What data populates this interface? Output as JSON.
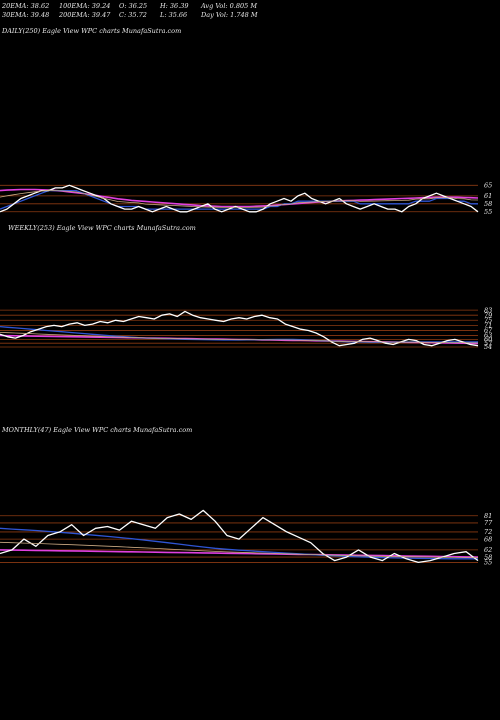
{
  "header": {
    "row1": [
      "20EMA: 38.62",
      "100EMA: 39.24",
      "O: 36.25",
      "H: 36.39",
      "Avg Vol: 0.805 M"
    ],
    "row2": [
      "30EMA: 39.48",
      "200EMA: 39.47",
      "C: 35.72",
      "L: 35.66",
      "Day Vol: 1.748 M"
    ]
  },
  "colors": {
    "background": "#000000",
    "price": "#ffffff",
    "grid": "#8b3a12",
    "ema_short": "#2f55d4",
    "ema_long": "#e040e0",
    "ema_mid": "#c8a882"
  },
  "chart_data": [
    {
      "type": "line",
      "title": "DAILY(250) Eagle  View  WPC charts MunafaSutra.com",
      "ylim": [
        33,
        67
      ],
      "grid_levels": [
        65,
        61,
        58,
        55
      ],
      "tick_labels": [
        "65",
        "61",
        "58",
        "55"
      ],
      "series": [
        {
          "values": [
            55,
            56,
            58,
            60,
            61,
            62,
            63,
            63,
            64,
            64,
            65,
            64,
            63,
            62,
            61,
            60,
            58,
            57,
            56,
            56,
            57,
            56,
            55,
            56,
            57,
            56,
            55,
            55,
            56,
            57,
            58,
            56,
            55,
            56,
            57,
            56,
            55,
            55,
            56,
            58,
            59,
            60,
            59,
            61,
            62,
            60,
            59,
            58,
            59,
            60,
            58,
            57,
            56,
            57,
            58,
            57,
            56,
            56,
            55,
            57,
            58,
            60,
            61,
            62,
            61,
            60,
            59,
            58,
            57,
            55
          ]
        },
        {
          "values": [
            56,
            57,
            58,
            59,
            60,
            61,
            62,
            63,
            63,
            63,
            63,
            63,
            62,
            61,
            60,
            59,
            58,
            57,
            57,
            57,
            57,
            56,
            56,
            56,
            56,
            56,
            56,
            56,
            56,
            56,
            56,
            56,
            56,
            56,
            56,
            56,
            56,
            56,
            56,
            57,
            57,
            58,
            58,
            59,
            59,
            59,
            59,
            59,
            59,
            59,
            59,
            59,
            58,
            58,
            58,
            58,
            58,
            58,
            58,
            58,
            59,
            59,
            59,
            60,
            60,
            60,
            59,
            59,
            58,
            58
          ]
        },
        {
          "values": [
            63,
            63.2,
            63.3,
            63.4,
            63.4,
            63.4,
            63.3,
            63.2,
            63,
            62.8,
            62.5,
            62.2,
            61.9,
            61.5,
            61.1,
            60.7,
            60.3,
            59.9,
            59.6,
            59.3,
            59.1,
            58.9,
            58.7,
            58.5,
            58.3,
            58.1,
            57.9,
            57.7,
            57.5,
            57.3,
            57.2,
            57.1,
            57,
            57,
            57,
            57,
            57,
            57.1,
            57.2,
            57.3,
            57.5,
            57.7,
            57.9,
            58.1,
            58.3,
            58.5,
            58.7,
            58.9,
            59,
            59.1,
            59.2,
            59.3,
            59.4,
            59.5,
            59.6,
            59.7,
            59.8,
            59.9,
            60,
            60.1,
            60.2,
            60.3,
            60.4,
            60.5,
            60.5,
            60.5,
            60.5,
            60.4,
            60.3,
            60.2
          ]
        }
      ]
    },
    {
      "type": "line",
      "title": "WEEKLY(253) Eagle  View  WPC charts MunafaSutra.com",
      "ylim": [
        32,
        87
      ],
      "grid_levels": [
        83,
        79,
        75,
        71,
        67,
        63,
        60,
        57,
        54
      ],
      "tick_labels": [
        "83",
        "79",
        "75",
        "71",
        "67",
        "63",
        "60",
        "57",
        "54"
      ],
      "series": [
        {
          "values": [
            64,
            62,
            61,
            63,
            66,
            68,
            70,
            71,
            70,
            72,
            73,
            71,
            72,
            74,
            73,
            75,
            74,
            76,
            78,
            77,
            76,
            79,
            80,
            78,
            82,
            79,
            77,
            76,
            75,
            74,
            76,
            77,
            76,
            78,
            79,
            77,
            76,
            72,
            70,
            68,
            67,
            65,
            62,
            58,
            55,
            56,
            57,
            60,
            61,
            59,
            57,
            56,
            58,
            60,
            59,
            56,
            55,
            57,
            59,
            60,
            58,
            56,
            55
          ]
        },
        {
          "values": [
            70,
            69.5,
            69,
            68.5,
            68,
            67.5,
            67,
            66.5,
            66,
            65.5,
            65,
            64.5,
            64,
            63.5,
            63,
            62.6,
            62.2,
            61.8,
            61.4,
            61,
            60.8,
            60.6,
            60.4,
            60.2,
            60,
            59.9,
            59.8,
            59.7,
            59.6,
            59.5,
            59.5,
            59.5,
            59.6,
            59.7,
            59.8,
            59.9,
            60,
            60,
            60,
            59.8,
            59.5,
            59.2,
            58.9,
            58.6,
            58.3,
            58.1,
            58,
            57.9,
            57.8,
            57.8,
            57.8,
            57.8,
            57.8,
            57.9,
            58,
            58,
            58,
            58,
            58,
            58,
            58,
            58,
            58
          ]
        },
        {
          "values": [
            63,
            62.9,
            62.8,
            62.7,
            62.6,
            62.5,
            62.4,
            62.3,
            62.2,
            62.1,
            62,
            61.9,
            61.8,
            61.7,
            61.6,
            61.5,
            61.4,
            61.3,
            61.2,
            61.1,
            61,
            60.9,
            60.8,
            60.7,
            60.6,
            60.5,
            60.4,
            60.3,
            60.2,
            60.1,
            60,
            59.9,
            59.8,
            59.7,
            59.6,
            59.5,
            59.4,
            59.3,
            59.2,
            59.1,
            59,
            58.9,
            58.8,
            58.7,
            58.6,
            58.5,
            58.4,
            58.3,
            58.2,
            58.1,
            58,
            57.9,
            57.8,
            57.7,
            57.6,
            57.5,
            57.4,
            57.3,
            57.2,
            57.1,
            57,
            56.9,
            56.8
          ]
        }
      ]
    },
    {
      "type": "line",
      "title": "MONTHLY(47) Eagle  View  WPC charts MunafaSutra.com",
      "ylim": [
        48,
        87
      ],
      "grid_levels": [
        81,
        77,
        72,
        68,
        62,
        58,
        55
      ],
      "tick_labels": [
        "81",
        "77",
        "72",
        "68",
        "62",
        "58",
        "55"
      ],
      "series": [
        {
          "values": [
            60,
            62,
            68,
            64,
            70,
            72,
            76,
            70,
            74,
            75,
            73,
            78,
            76,
            74,
            80,
            82,
            79,
            84,
            78,
            70,
            68,
            74,
            80,
            76,
            72,
            69,
            66,
            60,
            56,
            58,
            62,
            58,
            56,
            60,
            57,
            55,
            56,
            58,
            60,
            61,
            56
          ]
        },
        {
          "values": [
            74,
            73.6,
            73.2,
            72.8,
            72.3,
            71.8,
            71.3,
            70.7,
            70.1,
            69.5,
            68.9,
            68.2,
            67.5,
            66.8,
            66,
            65.2,
            64.4,
            63.6,
            62.9,
            62.3,
            61.8,
            61.4,
            61,
            60.6,
            60.2,
            59.8,
            59.4,
            59,
            58.7,
            58.4,
            58.1,
            57.9,
            57.7,
            57.5,
            57.4,
            57.3,
            57.2,
            57.1,
            57,
            57,
            57
          ]
        },
        {
          "values": [
            62,
            61.9,
            61.8,
            61.7,
            61.6,
            61.5,
            61.4,
            61.3,
            61.2,
            61.1,
            61,
            60.9,
            60.8,
            60.7,
            60.6,
            60.5,
            60.4,
            60.3,
            60.2,
            60.1,
            60,
            59.9,
            59.8,
            59.7,
            59.6,
            59.5,
            59.4,
            59.3,
            59.2,
            59.1,
            59,
            58.9,
            58.8,
            58.7,
            58.6,
            58.5,
            58.4,
            58.3,
            58.2,
            58.1,
            58
          ]
        }
      ]
    }
  ]
}
